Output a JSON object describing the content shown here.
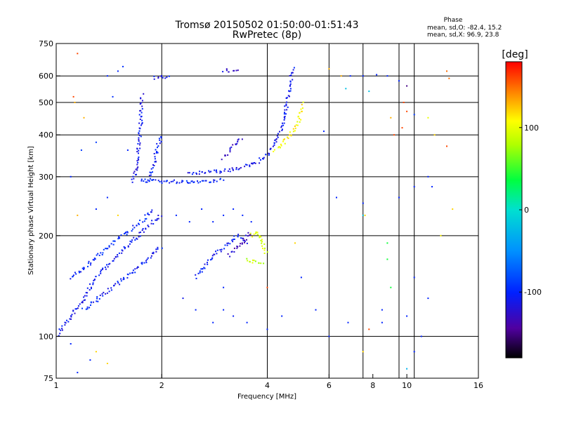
{
  "chart_data": {
    "type": "scatter",
    "title": "Tromsø 20150502 01:50:00-01:51:43",
    "subtitle": "RwPretec (8p)",
    "xlabel": "Frequency [MHz]",
    "ylabel": "Stationary phase Virtual Height [km]",
    "x_scale": "log",
    "y_scale": "log",
    "xlim": [
      1,
      16
    ],
    "ylim": [
      75,
      750
    ],
    "x_ticks": [
      1,
      2,
      4,
      6,
      8,
      10,
      16
    ],
    "x_tick_labels": [
      "1",
      "2",
      "4",
      "6",
      "8",
      "10",
      "16"
    ],
    "x_grid": [
      2,
      4,
      6,
      7.5,
      9.5,
      10.5
    ],
    "y_ticks": [
      75,
      100,
      200,
      300,
      400,
      500,
      600,
      750
    ],
    "y_tick_labels": [
      "75",
      "100",
      "200",
      "300",
      "400",
      "500",
      "600",
      "750"
    ],
    "y_grid": [
      100,
      200,
      300,
      400,
      500,
      600
    ],
    "grid": true,
    "stats": {
      "title": "Phase",
      "line_o": "mean, sd,O: -82.4, 15.2",
      "line_x": "mean, sd,X:  96.9, 23.8"
    },
    "colorbar": {
      "label": "[deg]",
      "range": [
        -180,
        180
      ],
      "ticks": [
        100,
        0,
        -100
      ],
      "tick_labels": [
        "100",
        "0",
        "-100"
      ],
      "colormap": "rainbow",
      "placement": "right"
    },
    "traces": [
      {
        "phase": -110,
        "points": [
          [
            1.0,
            100
          ],
          [
            1.05,
            108
          ],
          [
            1.1,
            114
          ],
          [
            1.15,
            122
          ],
          [
            1.2,
            130
          ],
          [
            1.25,
            140
          ],
          [
            1.3,
            150
          ],
          [
            1.4,
            162
          ],
          [
            1.5,
            175
          ],
          [
            1.6,
            188
          ],
          [
            1.7,
            198
          ],
          [
            1.8,
            210
          ],
          [
            1.9,
            222
          ],
          [
            2.0,
            230
          ]
        ]
      },
      {
        "phase": -105,
        "points": [
          [
            1.2,
            120
          ],
          [
            1.3,
            128
          ],
          [
            1.4,
            136
          ],
          [
            1.5,
            144
          ],
          [
            1.6,
            152
          ],
          [
            1.7,
            160
          ],
          [
            1.8,
            168
          ],
          [
            1.9,
            178
          ],
          [
            2.0,
            185
          ]
        ]
      },
      {
        "phase": -100,
        "points": [
          [
            1.1,
            150
          ],
          [
            1.2,
            160
          ],
          [
            1.3,
            172
          ],
          [
            1.4,
            185
          ],
          [
            1.5,
            196
          ],
          [
            1.6,
            205
          ],
          [
            1.7,
            215
          ],
          [
            1.8,
            226
          ],
          [
            1.9,
            240
          ]
        ]
      },
      {
        "phase": -110,
        "points": [
          [
            1.65,
            290
          ],
          [
            1.7,
            320
          ],
          [
            1.72,
            360
          ],
          [
            1.74,
            420
          ],
          [
            1.75,
            470
          ],
          [
            1.76,
            530
          ]
        ]
      },
      {
        "phase": -105,
        "points": [
          [
            1.8,
            290
          ],
          [
            1.85,
            300
          ],
          [
            1.9,
            330
          ],
          [
            1.95,
            370
          ],
          [
            2.0,
            400
          ]
        ]
      },
      {
        "phase": -100,
        "points": [
          [
            1.75,
            295
          ],
          [
            2.0,
            290
          ],
          [
            2.2,
            290
          ],
          [
            2.5,
            290
          ],
          [
            2.8,
            292
          ],
          [
            3.0,
            295
          ]
        ]
      },
      {
        "phase": -110,
        "points": [
          [
            2.4,
            305
          ],
          [
            2.6,
            308
          ],
          [
            2.8,
            310
          ],
          [
            3.0,
            312
          ],
          [
            3.2,
            315
          ],
          [
            3.4,
            320
          ],
          [
            3.6,
            325
          ],
          [
            3.8,
            335
          ],
          [
            4.0,
            350
          ],
          [
            4.2,
            375
          ],
          [
            4.4,
            420
          ],
          [
            4.5,
            470
          ],
          [
            4.6,
            530
          ],
          [
            4.7,
            600
          ],
          [
            4.75,
            640
          ]
        ]
      },
      {
        "phase": -125,
        "points": [
          [
            3.0,
            340
          ],
          [
            3.1,
            355
          ],
          [
            3.2,
            370
          ],
          [
            3.3,
            380
          ],
          [
            3.4,
            390
          ]
        ]
      },
      {
        "phase": 110,
        "points": [
          [
            4.2,
            360
          ],
          [
            4.4,
            375
          ],
          [
            4.6,
            395
          ],
          [
            4.8,
            420
          ],
          [
            4.9,
            440
          ],
          [
            5.0,
            470
          ],
          [
            5.1,
            500
          ]
        ]
      },
      {
        "phase": -110,
        "points": [
          [
            1.9,
            590
          ],
          [
            2.0,
            595
          ],
          [
            2.1,
            600
          ]
        ]
      },
      {
        "phase": -120,
        "points": [
          [
            3.0,
            625
          ],
          [
            3.1,
            620
          ],
          [
            3.2,
            625
          ],
          [
            3.3,
            620
          ]
        ]
      },
      {
        "phase": -105,
        "points": [
          [
            2.5,
            150
          ],
          [
            2.7,
            165
          ],
          [
            2.9,
            180
          ],
          [
            3.1,
            190
          ],
          [
            3.3,
            200
          ],
          [
            3.5,
            190
          ]
        ]
      },
      {
        "phase": -130,
        "points": [
          [
            3.1,
            175
          ],
          [
            3.2,
            180
          ],
          [
            3.3,
            185
          ],
          [
            3.4,
            190
          ],
          [
            3.5,
            200
          ],
          [
            3.6,
            205
          ]
        ]
      },
      {
        "phase": 85,
        "points": [
          [
            3.5,
            170
          ],
          [
            3.6,
            168
          ],
          [
            3.7,
            167
          ],
          [
            3.8,
            166
          ],
          [
            3.9,
            166
          ]
        ]
      },
      {
        "phase": 95,
        "points": [
          [
            3.6,
            200
          ],
          [
            3.7,
            205
          ],
          [
            3.8,
            200
          ],
          [
            3.9,
            185
          ],
          [
            4.0,
            175
          ]
        ]
      }
    ],
    "scatter_points": [
      [
        1.15,
        700,
        160
      ],
      [
        1.12,
        520,
        160
      ],
      [
        1.13,
        500,
        130
      ],
      [
        1.2,
        450,
        130
      ],
      [
        1.4,
        600,
        -100
      ],
      [
        1.5,
        620,
        -100
      ],
      [
        1.55,
        640,
        -95
      ],
      [
        1.45,
        520,
        -95
      ],
      [
        1.6,
        360,
        -100
      ],
      [
        1.3,
        380,
        -90
      ],
      [
        1.18,
        360,
        -90
      ],
      [
        1.1,
        300,
        -100
      ],
      [
        1.4,
        260,
        -100
      ],
      [
        1.15,
        230,
        130
      ],
      [
        1.3,
        240,
        -100
      ],
      [
        1.5,
        230,
        120
      ],
      [
        2.2,
        230,
        -100
      ],
      [
        2.4,
        220,
        -100
      ],
      [
        2.6,
        240,
        -100
      ],
      [
        2.8,
        220,
        -100
      ],
      [
        3.0,
        230,
        -100
      ],
      [
        3.2,
        240,
        -100
      ],
      [
        3.4,
        230,
        -100
      ],
      [
        3.6,
        220,
        -100
      ],
      [
        2.3,
        130,
        -110
      ],
      [
        2.5,
        120,
        -100
      ],
      [
        2.8,
        110,
        -100
      ],
      [
        3.0,
        120,
        -100
      ],
      [
        3.2,
        115,
        -105
      ],
      [
        3.5,
        110,
        -100
      ],
      [
        4.0,
        105,
        -100
      ],
      [
        4.4,
        115,
        -100
      ],
      [
        4.8,
        190,
        120
      ],
      [
        5.0,
        150,
        -100
      ],
      [
        5.5,
        120,
        -100
      ],
      [
        5.8,
        410,
        -100
      ],
      [
        6.0,
        630,
        130
      ],
      [
        6.5,
        600,
        130
      ],
      [
        6.7,
        550,
        -20
      ],
      [
        6.9,
        600,
        -100
      ],
      [
        7.5,
        600,
        -100
      ],
      [
        7.8,
        540,
        -20
      ],
      [
        8.2,
        605,
        -100
      ],
      [
        8.8,
        600,
        -100
      ],
      [
        9.5,
        580,
        -100
      ],
      [
        9.8,
        500,
        160
      ],
      [
        10.0,
        560,
        -150
      ],
      [
        10.5,
        460,
        -90
      ],
      [
        13.0,
        620,
        150
      ],
      [
        13.2,
        590,
        150
      ],
      [
        9.2,
        400,
        160
      ],
      [
        9.7,
        420,
        160
      ],
      [
        10.0,
        470,
        160
      ],
      [
        9.0,
        450,
        130
      ],
      [
        13.0,
        370,
        160
      ],
      [
        12.0,
        400,
        120
      ],
      [
        11.5,
        450,
        100
      ],
      [
        6.3,
        260,
        -100
      ],
      [
        7.5,
        250,
        -100
      ],
      [
        7.5,
        230,
        -20
      ],
      [
        7.6,
        230,
        120
      ],
      [
        9.5,
        260,
        -100
      ],
      [
        11.8,
        280,
        -100
      ],
      [
        11.5,
        300,
        -100
      ],
      [
        10.5,
        280,
        -100
      ],
      [
        13.5,
        240,
        120
      ],
      [
        12.5,
        200,
        110
      ],
      [
        8.8,
        190,
        40
      ],
      [
        8.8,
        170,
        40
      ],
      [
        9.0,
        140,
        40
      ],
      [
        10.5,
        150,
        -100
      ],
      [
        11.5,
        130,
        -100
      ],
      [
        8.5,
        120,
        -100
      ],
      [
        8.5,
        110,
        -100
      ],
      [
        7.8,
        105,
        160
      ],
      [
        7.5,
        90,
        120
      ],
      [
        10.0,
        80,
        -30
      ],
      [
        10.5,
        90,
        -100
      ],
      [
        11.0,
        100,
        -100
      ],
      [
        10.0,
        115,
        -100
      ],
      [
        6.0,
        100,
        -100
      ],
      [
        6.8,
        110,
        -100
      ],
      [
        4.0,
        140,
        160
      ],
      [
        3.0,
        140,
        -100
      ],
      [
        1.3,
        90,
        120
      ],
      [
        1.25,
        85,
        -100
      ],
      [
        1.4,
        83,
        120
      ],
      [
        1.1,
        95,
        -100
      ],
      [
        1.15,
        78,
        -100
      ]
    ]
  }
}
